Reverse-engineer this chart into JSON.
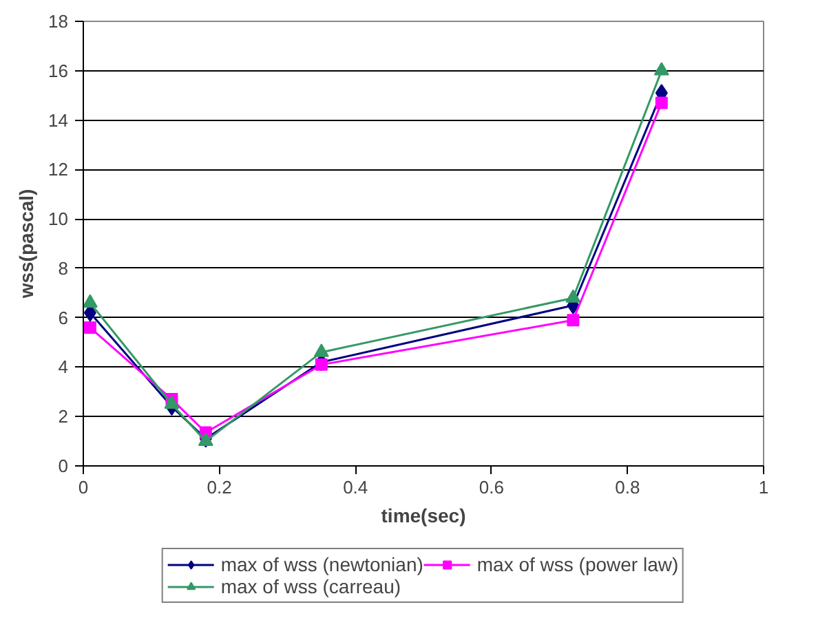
{
  "chart_data": {
    "type": "line",
    "xlabel": "time(sec)",
    "ylabel": "wss(pascal)",
    "x": [
      0.01,
      0.13,
      0.18,
      0.35,
      0.72,
      0.85
    ],
    "series": [
      {
        "name": "max of wss (newtonian)",
        "color": "#000080",
        "marker": "diamond",
        "values": [
          6.2,
          2.4,
          1.1,
          4.2,
          6.5,
          15.1
        ]
      },
      {
        "name": "max of wss (power law)",
        "color": "#ff00ff",
        "marker": "square",
        "values": [
          5.6,
          2.7,
          1.35,
          4.1,
          5.9,
          14.7
        ]
      },
      {
        "name": "max of wss (carreau)",
        "color": "#339966",
        "marker": "triangle",
        "values": [
          6.6,
          2.5,
          1.0,
          4.6,
          6.8,
          16.0
        ]
      }
    ],
    "xlim": [
      0,
      1
    ],
    "xticks": [
      0,
      0.2,
      0.4,
      0.6,
      0.8,
      1
    ],
    "ylim": [
      0,
      18
    ],
    "yticks": [
      0,
      2,
      4,
      6,
      8,
      10,
      12,
      14,
      16,
      18
    ],
    "grid": "y",
    "legend": "bottom"
  }
}
